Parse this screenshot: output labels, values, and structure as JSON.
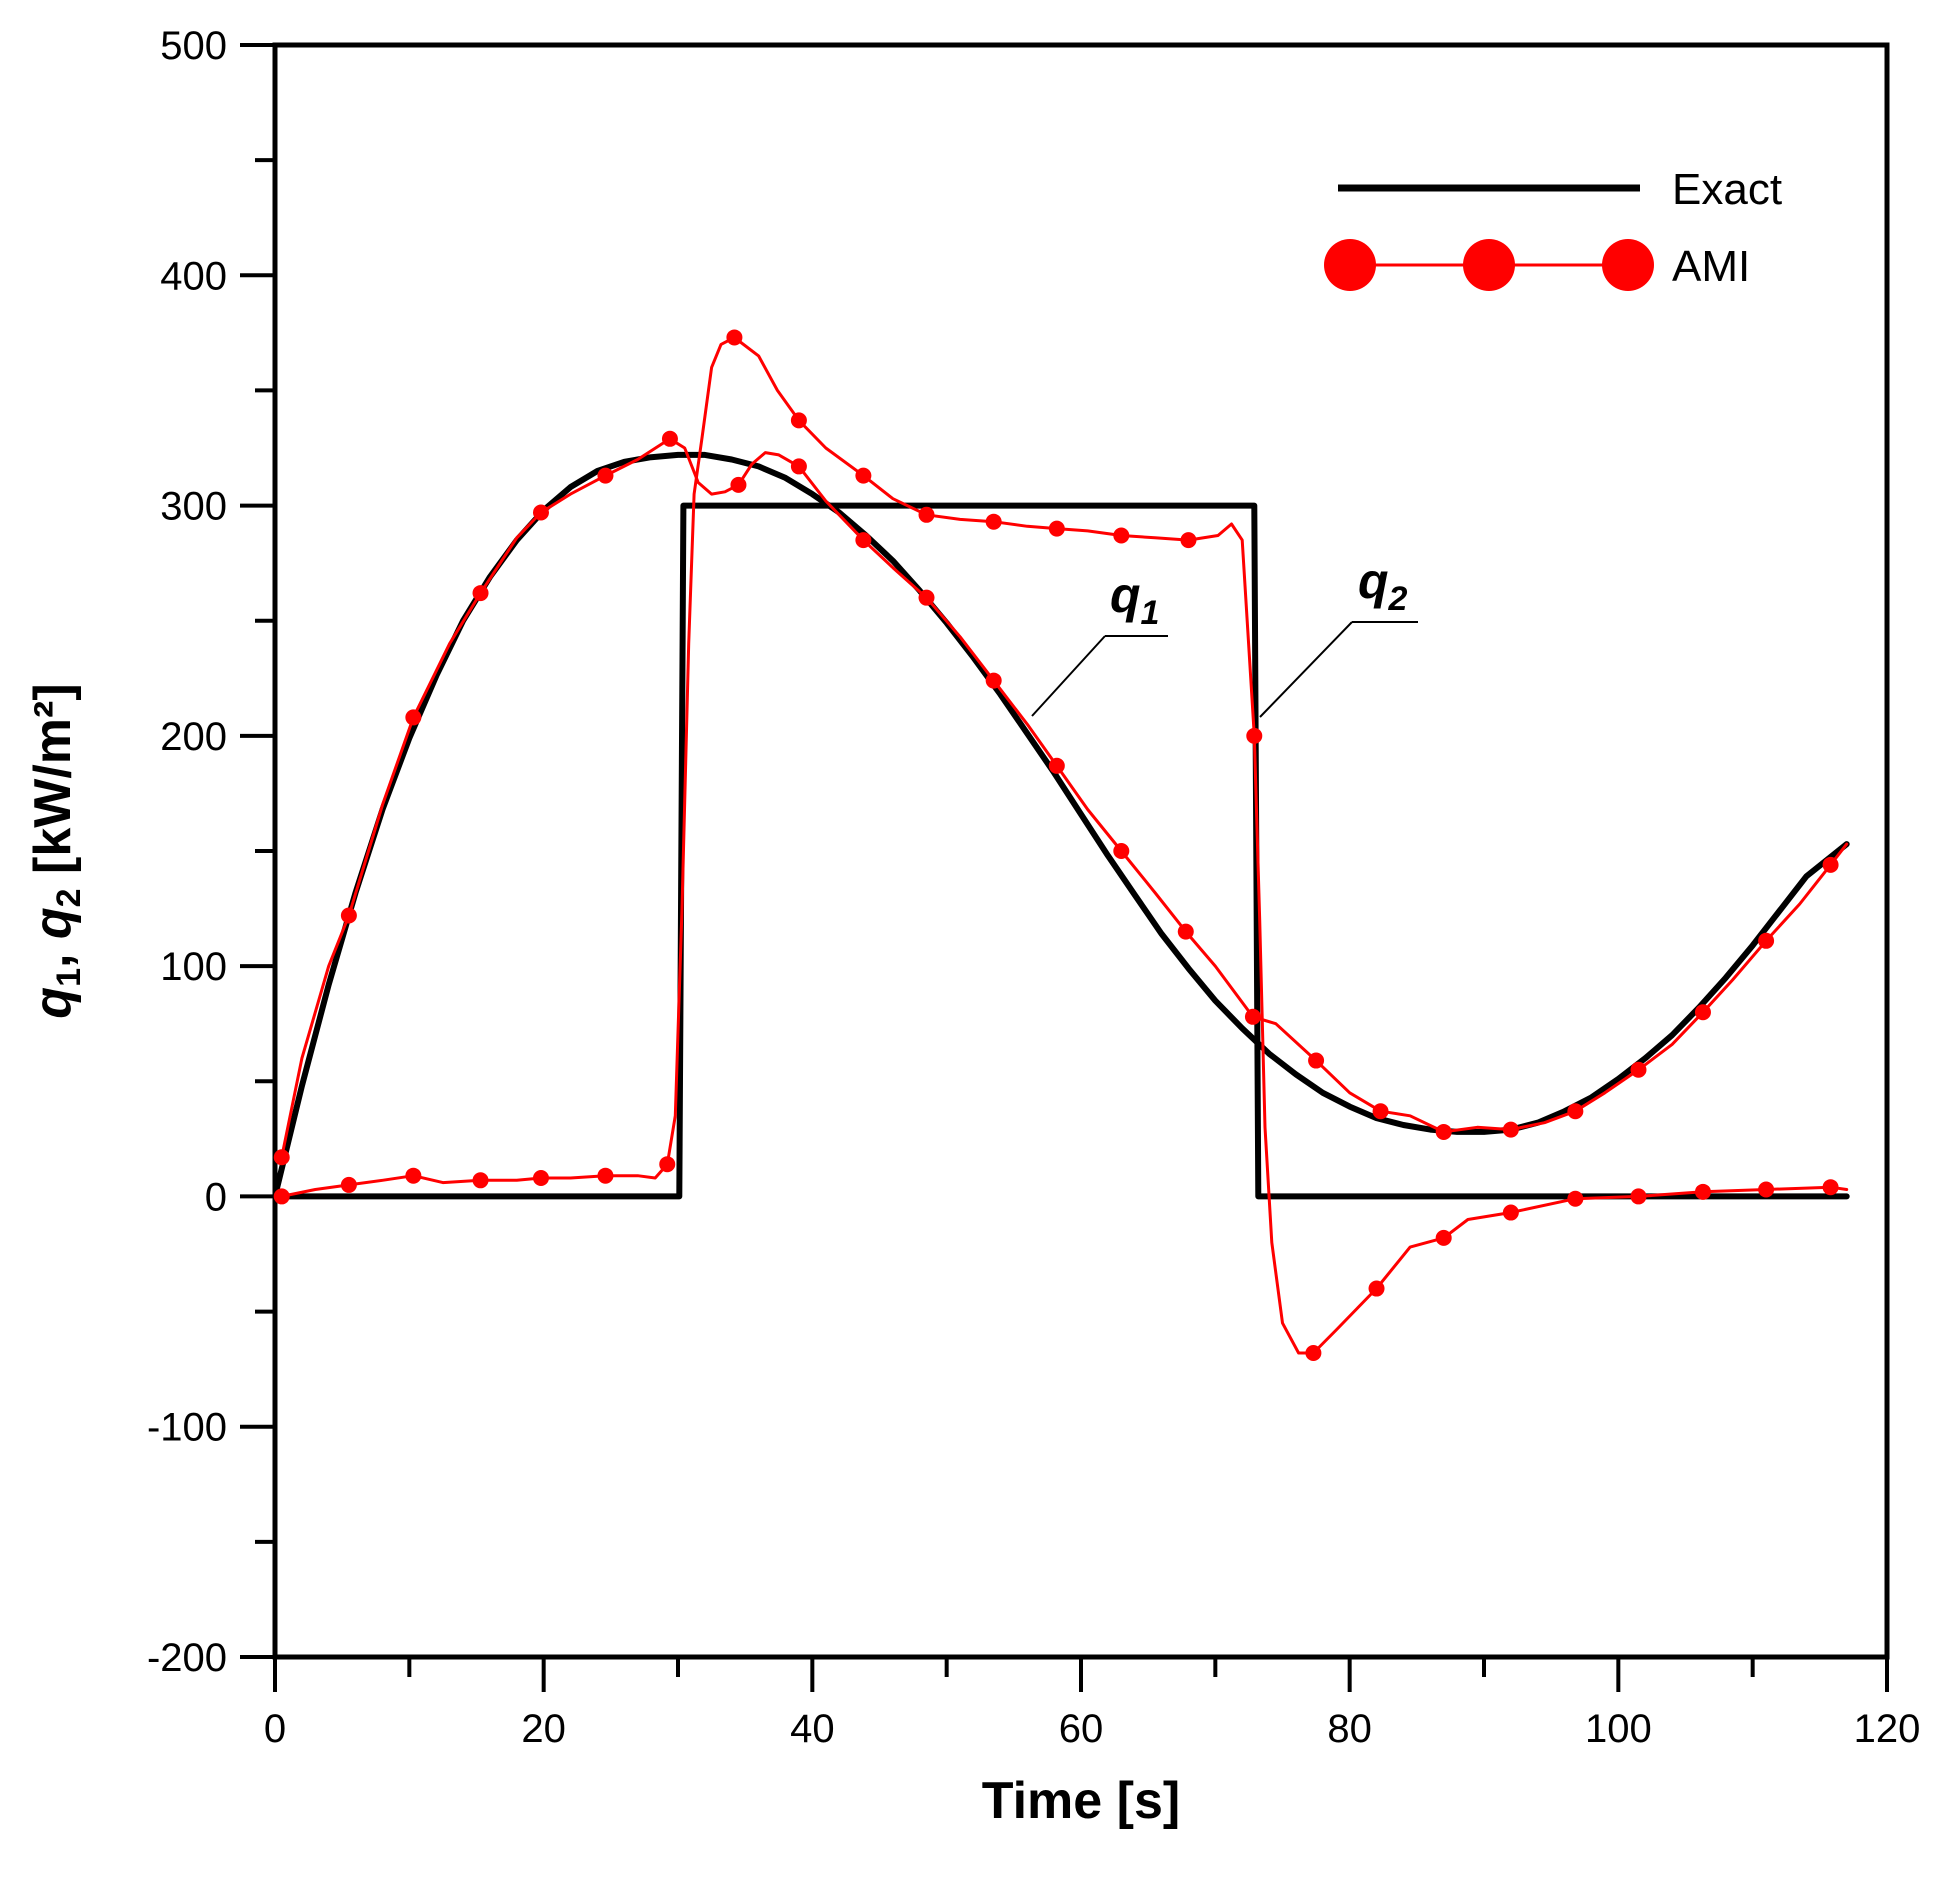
{
  "chart_data": {
    "type": "line",
    "title": "",
    "xlabel": "Time [s]",
    "ylabel": {
      "q1": "q",
      "q1_sub": "1",
      "sep": ", ",
      "q2": "q",
      "q2_sub": "2",
      "units": " [kW/m²]"
    },
    "xlim": [
      0,
      120
    ],
    "ylim": [
      -200,
      500
    ],
    "x_ticks": [
      0,
      20,
      40,
      60,
      80,
      100,
      120
    ],
    "x_tick_labels": [
      "0",
      "20",
      "40",
      "60",
      "80",
      "100",
      "120"
    ],
    "y_ticks": [
      -200,
      -100,
      0,
      100,
      200,
      300,
      400,
      500
    ],
    "y_tick_labels": [
      "-200",
      "-100",
      "0",
      "100",
      "200",
      "300",
      "400",
      "500"
    ],
    "legend": {
      "position": "top-right",
      "entries": [
        {
          "name": "Exact",
          "color": "#000000",
          "marker": "none"
        },
        {
          "name": "AMI",
          "color": "#ff0000",
          "marker": "circle"
        }
      ]
    },
    "annotations": [
      {
        "text": "q",
        "sub": "1",
        "target": "q1"
      },
      {
        "text": "q",
        "sub": "2",
        "target": "q2"
      }
    ],
    "series": [
      {
        "name": "Exact q1",
        "color": "#000000",
        "x": [
          0,
          2,
          4,
          6,
          8,
          10,
          12,
          14,
          16,
          18,
          20,
          22,
          24,
          26,
          28,
          30,
          32,
          34,
          36,
          38,
          40,
          42,
          44,
          46,
          48,
          50,
          52,
          54,
          56,
          58,
          60,
          62,
          64,
          66,
          68,
          70,
          72,
          74,
          76,
          78,
          80,
          82,
          84,
          86,
          88,
          90,
          92,
          94,
          96,
          98,
          100,
          102,
          104,
          106,
          108,
          110,
          112,
          114,
          117
        ],
        "y": [
          0,
          48,
          92,
          132,
          168,
          199,
          226,
          250,
          269,
          285,
          298,
          308,
          315,
          319,
          321,
          322,
          322,
          320,
          317,
          312,
          305,
          297,
          287,
          276,
          263,
          249,
          234,
          218,
          201,
          184,
          166,
          148,
          131,
          114,
          99,
          85,
          73,
          62,
          53,
          45,
          39,
          34,
          31,
          29,
          28,
          28,
          29,
          32,
          37,
          43,
          51,
          60,
          70,
          82,
          95,
          109,
          124,
          139,
          153
        ]
      },
      {
        "name": "Exact q2",
        "color": "#000000",
        "x": [
          0,
          30.1,
          30.4,
          72.9,
          73.2,
          117
        ],
        "y": [
          0,
          0,
          300,
          300,
          0,
          0
        ]
      },
      {
        "name": "AMI q1",
        "color": "#ff0000",
        "x": [
          0.5,
          2,
          4,
          5.5,
          8,
          10.3,
          13,
          15.3,
          18,
          19.8,
          22,
          24.6,
          27,
          29.4,
          30.5,
          31.5,
          32.5,
          33.5,
          34.5,
          35.5,
          36.5,
          37.5,
          39,
          41,
          43.8,
          46,
          48.5,
          51,
          53.5,
          56,
          58.2,
          60.5,
          63,
          65.5,
          67.8,
          70,
          72.8,
          74.5,
          77.5,
          80,
          82.3,
          84.5,
          87,
          89.5,
          92,
          94.5,
          96.8,
          99,
          101.5,
          104,
          106.3,
          108.5,
          111,
          113.5,
          115.8,
          117
        ],
        "y": [
          17,
          60,
          100,
          122,
          170,
          208,
          240,
          262,
          286,
          297,
          305,
          313,
          320,
          329,
          325,
          310,
          305,
          306,
          309,
          318,
          323,
          322,
          317,
          302,
          285,
          273,
          260,
          243,
          224,
          205,
          187,
          168,
          150,
          132,
          115,
          100,
          78,
          75,
          59,
          45,
          37,
          35,
          28,
          30,
          29,
          32,
          37,
          45,
          55,
          66,
          80,
          94,
          111,
          127,
          144,
          153
        ]
      },
      {
        "name": "AMI q2",
        "color": "#ff0000",
        "x": [
          0.5,
          3,
          5.5,
          8,
          10.3,
          12.5,
          15.3,
          18,
          19.8,
          22,
          24.6,
          27,
          28.3,
          29.2,
          29.8,
          30.3,
          30.8,
          31.2,
          31.8,
          32.5,
          33.2,
          34.2,
          36,
          37.4,
          39,
          41,
          43.8,
          46,
          48.5,
          51,
          53.5,
          56,
          58.2,
          60.5,
          63,
          65.5,
          68,
          70.2,
          71.2,
          72,
          72.9,
          73.3,
          73.7,
          74.2,
          75,
          76.2,
          77.3,
          79,
          82,
          84.5,
          87,
          88.8,
          92,
          96.8,
          101.5,
          106.3,
          111,
          115.8,
          117
        ],
        "y": [
          0,
          3,
          5,
          7,
          9,
          6,
          7,
          7,
          8,
          8,
          9,
          9,
          8,
          14,
          35,
          125,
          240,
          305,
          330,
          360,
          370,
          373,
          365,
          350,
          337,
          325,
          313,
          303,
          296,
          294,
          293,
          291,
          290,
          289,
          287,
          286,
          285,
          287,
          292,
          285,
          200,
          120,
          30,
          -20,
          -55,
          -68,
          -68,
          -58,
          -40,
          -22,
          -18,
          -10,
          -7,
          -1,
          0,
          2,
          3,
          4,
          3
        ]
      }
    ]
  }
}
